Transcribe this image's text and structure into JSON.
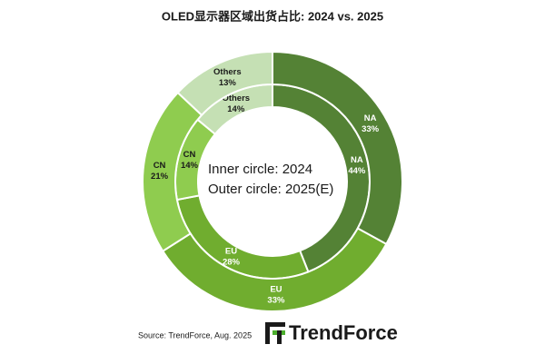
{
  "chart_data": {
    "type": "nested-donut",
    "title": "OLED显示器区域出货占比: 2024 vs. 2025",
    "categories": [
      "NA",
      "EU",
      "CN",
      "Others"
    ],
    "colors": [
      "#548235",
      "#70ad2f",
      "#8fcc4f",
      "#c5e0b4"
    ],
    "label_colors": [
      "#ffffff",
      "#ffffff",
      "#1a1a1a",
      "#1a1a1a"
    ],
    "series": [
      {
        "values": [
          44,
          28,
          14,
          14
        ],
        "value_labels": [
          "44%",
          "28%",
          "14%",
          "14%"
        ]
      },
      {
        "values": [
          33,
          33,
          21,
          13
        ],
        "value_labels": [
          "33%",
          "33%",
          "21%",
          "13%"
        ]
      }
    ],
    "center_text": [
      "Inner circle: 2024",
      "Outer circle: 2025(E)"
    ],
    "source": "Source: TrendForce, Aug. 2025",
    "logo": "TrendForce"
  }
}
